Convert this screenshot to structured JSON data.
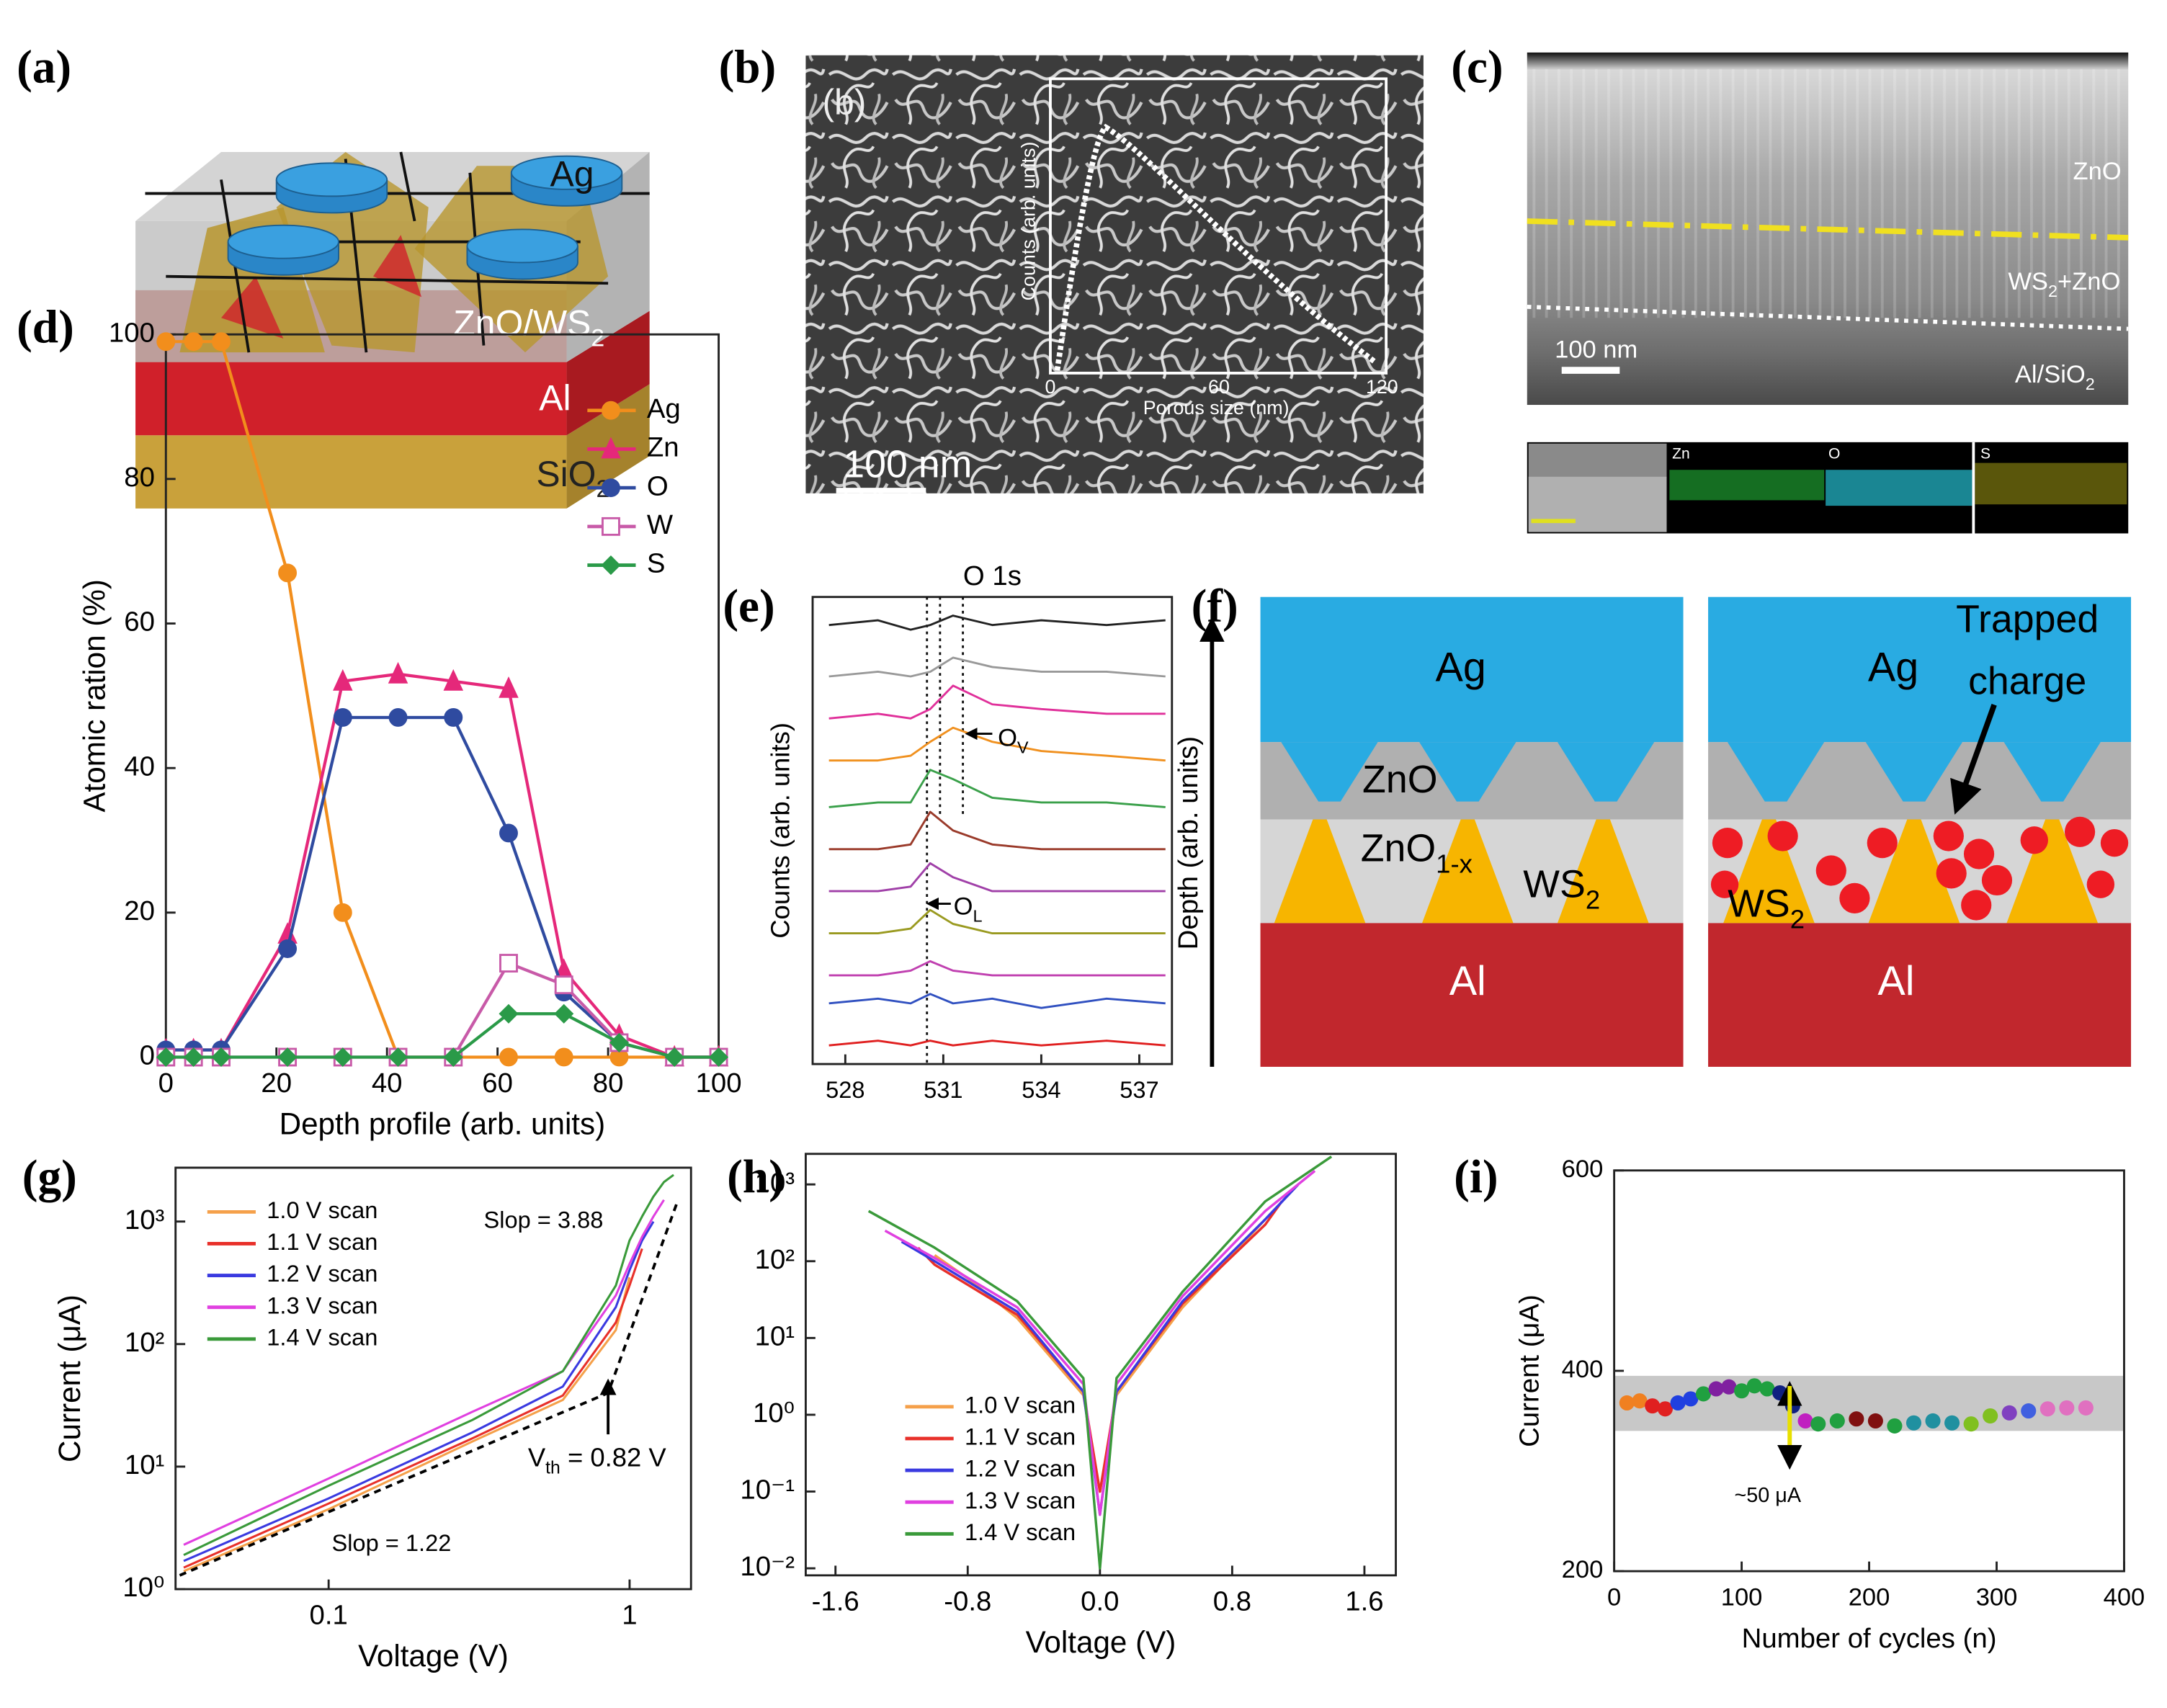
{
  "panels": {
    "labels": [
      "(a)",
      "(b)",
      "(c)",
      "(d)",
      "(e)",
      "(f)",
      "(g)",
      "(h)",
      "(i)"
    ],
    "a": {
      "ag": "Ag",
      "layer": {
        "text": "ZnO/WS",
        "sub": "2"
      },
      "al": "Al",
      "sio2": {
        "text": "SiO",
        "sub": "2"
      }
    },
    "b": {
      "label": "(b)",
      "scale": "100 nm",
      "inset_ylabel": "Counts (arb. units)",
      "inset_xlabel": "Porous size (nm)",
      "inset_xticks": [
        "0",
        "60",
        "120"
      ]
    },
    "c": {
      "zno": "ZnO",
      "mix": {
        "text": "WS",
        "sub": "2",
        "rest": "+ZnO"
      },
      "scale": "100 nm",
      "base": {
        "text": "Al/SiO",
        "sub": "2"
      },
      "maps": [
        "Zn",
        "O",
        "S"
      ]
    },
    "f": {
      "depth": "Depth (arb. units)",
      "ag": "Ag",
      "zno": "ZnO",
      "znox": {
        "text": "ZnO",
        "sub": "1-x"
      },
      "ws2": {
        "text": "WS",
        "sub": "2"
      },
      "al": "Al",
      "trapped": [
        "Trapped",
        "charge"
      ]
    }
  },
  "chart_data": [
    {
      "type": "line",
      "xlabel": "Depth profile (arb. units)",
      "ylabel": "Atomic ration (%)",
      "xlim": [
        0,
        100
      ],
      "xticks": [
        0,
        20,
        40,
        60,
        80,
        100
      ],
      "ylim": [
        0,
        100
      ],
      "yticks": [
        0,
        20,
        40,
        60,
        80,
        100
      ],
      "legend": "upper right",
      "x": [
        0,
        5,
        10,
        22,
        32,
        42,
        52,
        62,
        72,
        82,
        92,
        100
      ],
      "series": [
        {
          "name": "Ag",
          "color": "#f28e1c",
          "marker": "circle",
          "values": [
            99,
            99,
            99,
            67,
            20,
            0,
            0,
            0,
            0,
            0,
            0,
            0
          ]
        },
        {
          "name": "Zn",
          "color": "#e5287a",
          "marker": "triangle",
          "values": [
            1,
            1,
            1,
            17,
            52,
            53,
            52,
            51,
            12,
            3,
            0,
            0
          ]
        },
        {
          "name": "O",
          "color": "#2f4ba0",
          "marker": "circle",
          "values": [
            1,
            1,
            1,
            15,
            47,
            47,
            47,
            31,
            9,
            2,
            0,
            0
          ]
        },
        {
          "name": "W",
          "color": "#c85aa8",
          "marker": "square",
          "values": [
            0,
            0,
            0,
            0,
            0,
            0,
            0,
            13,
            10,
            2,
            0,
            0
          ]
        },
        {
          "name": "S",
          "color": "#2a9a48",
          "marker": "diamond",
          "values": [
            0,
            0,
            0,
            0,
            0,
            0,
            0,
            6,
            6,
            2,
            0,
            0
          ]
        }
      ]
    },
    {
      "type": "line",
      "title": "O 1s",
      "ylabel": "Counts (arb. units)",
      "xlim": [
        527,
        538
      ],
      "xticks": [
        528,
        531,
        534,
        537
      ],
      "ylim": [
        0,
        100
      ],
      "reference_lines": [
        530.5,
        530.9,
        531.6
      ],
      "annotations": [
        {
          "text": "O",
          "sub": "V"
        },
        {
          "text": "O",
          "sub": "L"
        }
      ],
      "x": [
        527.5,
        529,
        530,
        530.6,
        531.3,
        532.5,
        534,
        536,
        537.8
      ],
      "series": [
        {
          "color": "#222222",
          "values": [
            94,
            95,
            93,
            94,
            96,
            94,
            95,
            94,
            95
          ]
        },
        {
          "color": "#999999",
          "values": [
            83,
            84,
            83,
            84,
            87,
            85,
            84,
            84,
            83
          ]
        },
        {
          "color": "#e0309a",
          "values": [
            74,
            75,
            74,
            76,
            81,
            77,
            76,
            75,
            75
          ]
        },
        {
          "color": "#f0901e",
          "values": [
            65,
            65,
            66,
            69,
            72,
            69,
            67,
            66,
            65
          ]
        },
        {
          "color": "#3aa04a",
          "values": [
            55,
            56,
            56,
            63,
            61,
            57,
            56,
            56,
            55
          ]
        },
        {
          "color": "#9a3a2a",
          "values": [
            46,
            46,
            47,
            54,
            50,
            47,
            46,
            46,
            46
          ]
        },
        {
          "color": "#a040a8",
          "values": [
            37,
            37,
            38,
            43,
            40,
            37,
            37,
            37,
            37
          ]
        },
        {
          "color": "#9a9a20",
          "values": [
            28,
            28,
            29,
            33,
            30,
            28,
            28,
            28,
            28
          ]
        },
        {
          "color": "#c040b0",
          "values": [
            19,
            19,
            20,
            22,
            20,
            19,
            19,
            19,
            19
          ]
        },
        {
          "color": "#3050c0",
          "values": [
            13,
            14,
            13,
            15,
            13,
            14,
            12,
            14,
            13
          ]
        },
        {
          "color": "#e02020",
          "values": [
            4,
            5,
            4,
            5,
            4,
            5,
            4,
            5,
            4
          ]
        }
      ]
    },
    {
      "type": "line",
      "xscale": "log",
      "yscale": "log",
      "xlabel": "Voltage (V)",
      "ylabel": "Current (μA)",
      "xlim": [
        0.031,
        1.6
      ],
      "xticks": [
        0.1,
        1
      ],
      "ylim": [
        1,
        2750
      ],
      "yticks": [
        {
          "value": 1,
          "label": "10⁰"
        },
        {
          "value": 10,
          "label": "10¹"
        },
        {
          "value": 100,
          "label": "10²"
        },
        {
          "value": 1000,
          "label": "10³"
        }
      ],
      "legend": "upper left",
      "annotations": [
        "Slop = 3.88",
        "Slop = 1.22",
        {
          "text": "V",
          "sub": "th",
          "rest": " = 0.82 V"
        }
      ],
      "series": [
        {
          "name": "1.0 V scan",
          "color": "#f5a04a",
          "x": [
            0.033,
            0.1,
            0.3,
            0.6,
            0.9,
            1.0
          ],
          "values": [
            1.4,
            4.5,
            16,
            35,
            130,
            350
          ]
        },
        {
          "name": "1.1 V scan",
          "color": "#e8302a",
          "x": [
            0.033,
            0.1,
            0.3,
            0.6,
            0.9,
            1.0,
            1.1
          ],
          "values": [
            1.5,
            5,
            17,
            38,
            150,
            300,
            600
          ]
        },
        {
          "name": "1.2 V scan",
          "color": "#3a3ae0",
          "x": [
            0.033,
            0.1,
            0.3,
            0.6,
            0.9,
            1.0,
            1.1,
            1.2
          ],
          "values": [
            1.7,
            5.5,
            19,
            45,
            200,
            400,
            700,
            1000
          ]
        },
        {
          "name": "1.3 V scan",
          "color": "#e040e0",
          "x": [
            0.033,
            0.1,
            0.3,
            0.6,
            0.9,
            1.0,
            1.1,
            1.2,
            1.3
          ],
          "values": [
            2.3,
            8,
            28,
            60,
            250,
            450,
            750,
            1100,
            1500
          ]
        },
        {
          "name": "1.4 V scan",
          "color": "#3a9a3a",
          "x": [
            0.033,
            0.1,
            0.3,
            0.6,
            0.9,
            1.0,
            1.1,
            1.2,
            1.3,
            1.4
          ],
          "values": [
            1.9,
            7,
            24,
            60,
            300,
            700,
            1100,
            1600,
            2100,
            2400
          ]
        }
      ]
    },
    {
      "type": "line",
      "yscale": "log",
      "xlabel": "Voltage (V)",
      "xlim": [
        -1.78,
        1.79
      ],
      "xticks": [
        -1.6,
        -0.8,
        {
          "value": 0,
          "label": "0.0"
        },
        0.8,
        1.6
      ],
      "ylim": [
        0.0081,
        2500
      ],
      "yticks": [
        {
          "value": 0.01,
          "label": "10⁻²"
        },
        {
          "value": 0.1,
          "label": "10⁻¹"
        },
        {
          "value": 1,
          "label": "10⁰"
        },
        {
          "value": 10,
          "label": "10¹"
        },
        {
          "value": 100,
          "label": "10²"
        },
        {
          "value": 1000,
          "label": "10³"
        }
      ],
      "legend": "lower left",
      "series": [
        {
          "name": "1.0 V scan",
          "color": "#f5a04a",
          "x": [
            -1.0,
            -0.8,
            -0.5,
            -0.1,
            0,
            0.1,
            0.5,
            0.8,
            1.0
          ],
          "values": [
            120,
            60,
            18,
            1.8,
            0.1,
            1.8,
            25,
            120,
            350
          ]
        },
        {
          "name": "1.1 V scan",
          "color": "#e8302a",
          "x": [
            -1.1,
            -1.0,
            -0.5,
            -0.1,
            0,
            0.1,
            0.5,
            1.0,
            1.1
          ],
          "values": [
            150,
            90,
            20,
            2,
            0.1,
            2,
            28,
            300,
            600
          ]
        },
        {
          "name": "1.2 V scan",
          "color": "#3a3ae0",
          "x": [
            -1.2,
            -1.0,
            -0.5,
            -0.1,
            0,
            0.1,
            0.5,
            1.0,
            1.2
          ],
          "values": [
            180,
            100,
            22,
            2,
            0.05,
            2,
            30,
            350,
            1000
          ]
        },
        {
          "name": "1.3 V scan",
          "color": "#e040e0",
          "x": [
            -1.3,
            -1.0,
            -0.5,
            -0.1,
            0,
            0.1,
            0.5,
            1.0,
            1.3
          ],
          "values": [
            250,
            110,
            25,
            2.5,
            0.05,
            2.5,
            35,
            450,
            1500
          ]
        },
        {
          "name": "1.4 V scan",
          "color": "#3a9a3a",
          "x": [
            -1.4,
            -1.0,
            -0.5,
            -0.1,
            0,
            0.1,
            0.5,
            1.0,
            1.4
          ],
          "values": [
            450,
            150,
            30,
            3,
            0.01,
            3,
            40,
            600,
            2300
          ]
        }
      ]
    },
    {
      "type": "scatter",
      "xlabel": "Number of cycles (n)",
      "ylabel": "Current (μA)",
      "xlim": [
        0,
        400
      ],
      "xticks": [
        0,
        100,
        200,
        300,
        400
      ],
      "ylim": [
        200,
        600
      ],
      "yticks": [
        200,
        400,
        600
      ],
      "band": [
        340,
        395
      ],
      "band_color": "#c8c8c8",
      "annotations": [
        "~50 μA"
      ],
      "x": [
        10,
        20,
        30,
        40,
        50,
        60,
        70,
        80,
        90,
        100,
        110,
        120,
        130,
        140,
        150,
        160,
        175,
        190,
        205,
        220,
        235,
        250,
        265,
        280,
        295,
        310,
        325,
        340,
        355,
        370
      ],
      "values": [
        368,
        370,
        365,
        362,
        368,
        372,
        377,
        382,
        384,
        380,
        385,
        382,
        378,
        365,
        350,
        347,
        350,
        352,
        350,
        345,
        348,
        350,
        348,
        347,
        355,
        358,
        360,
        362,
        363,
        363
      ],
      "colors": [
        "#f08020",
        "#f08020",
        "#e02020",
        "#e02020",
        "#2040e0",
        "#2040e0",
        "#20a040",
        "#8020a0",
        "#8020a0",
        "#20a040",
        "#20a040",
        "#20a040",
        "#102080",
        "#102080",
        "#c020c0",
        "#20a040",
        "#20a040",
        "#801010",
        "#801010",
        "#20a040",
        "#2090a0",
        "#2090a0",
        "#2090a0",
        "#80c020",
        "#80c020",
        "#8040c0",
        "#4060e0",
        "#e070c0",
        "#e070c0",
        "#e070c0"
      ]
    }
  ]
}
